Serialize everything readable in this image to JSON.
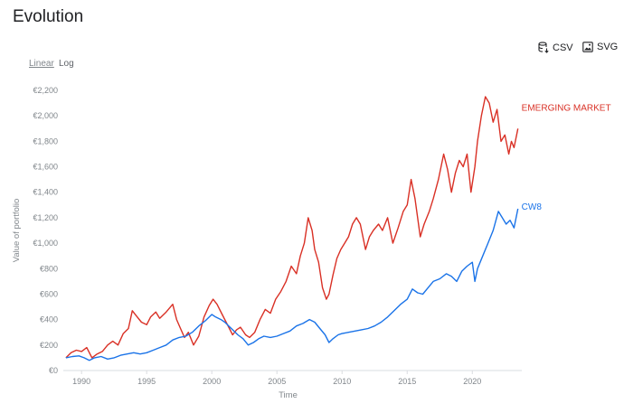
{
  "page": {
    "title": "Evolution"
  },
  "toolbar": {
    "csv_label": "CSV",
    "svg_label": "SVG",
    "linear_label": "Linear",
    "log_label": "Log",
    "active_scale": "Linear"
  },
  "chart_data": {
    "type": "line",
    "title": "",
    "xlabel": "Time",
    "ylabel": "Value of portfolio",
    "xlim": [
      1988.6,
      2023.8
    ],
    "ylim": [
      0,
      2200
    ],
    "x_ticks": [
      1990,
      1995,
      2000,
      2005,
      2010,
      2015,
      2020
    ],
    "x_tick_labels": [
      "1990",
      "1995",
      "2000",
      "2005",
      "2010",
      "2015",
      "2020"
    ],
    "y_ticks": [
      0,
      200,
      400,
      600,
      800,
      1000,
      1200,
      1400,
      1600,
      1800,
      2000,
      2200
    ],
    "y_tick_labels": [
      "€0",
      "€200",
      "€400",
      "€600",
      "€800",
      "€1,000",
      "€1,200",
      "€1,400",
      "€1,600",
      "€1,800",
      "€2,000",
      "€2,200"
    ],
    "grid": false,
    "legend": "inline labels at series ends",
    "series": [
      {
        "name": "EMERGING MARKET",
        "color": "#d93025",
        "x": [
          1988.8,
          1989.2,
          1989.6,
          1990.0,
          1990.4,
          1990.8,
          1991.2,
          1991.6,
          1992.0,
          1992.4,
          1992.8,
          1993.2,
          1993.6,
          1993.9,
          1994.2,
          1994.6,
          1995.0,
          1995.3,
          1995.7,
          1996.0,
          1996.5,
          1997.0,
          1997.3,
          1997.6,
          1997.9,
          1998.2,
          1998.6,
          1999.0,
          1999.4,
          1999.8,
          2000.1,
          2000.4,
          2000.8,
          2001.2,
          2001.6,
          2001.9,
          2002.2,
          2002.6,
          2002.9,
          2003.3,
          2003.7,
          2004.1,
          2004.5,
          2004.9,
          2005.3,
          2005.7,
          2006.1,
          2006.5,
          2006.8,
          2007.1,
          2007.4,
          2007.7,
          2007.9,
          2008.2,
          2008.5,
          2008.8,
          2009.0,
          2009.3,
          2009.6,
          2009.9,
          2010.2,
          2010.5,
          2010.8,
          2011.1,
          2011.4,
          2011.8,
          2012.1,
          2012.4,
          2012.8,
          2013.1,
          2013.5,
          2013.9,
          2014.3,
          2014.7,
          2015.0,
          2015.3,
          2015.6,
          2016.0,
          2016.3,
          2016.7,
          2017.0,
          2017.4,
          2017.8,
          2018.1,
          2018.4,
          2018.7,
          2019.0,
          2019.3,
          2019.6,
          2019.9,
          2020.2,
          2020.4,
          2020.7,
          2021.0,
          2021.3,
          2021.6,
          2021.9,
          2022.2,
          2022.5,
          2022.8,
          2023.0,
          2023.2,
          2023.5
        ],
        "values": [
          100,
          140,
          160,
          150,
          180,
          100,
          130,
          150,
          200,
          230,
          200,
          290,
          330,
          470,
          430,
          380,
          360,
          420,
          460,
          410,
          460,
          520,
          400,
          330,
          260,
          300,
          200,
          270,
          420,
          510,
          560,
          520,
          440,
          360,
          280,
          320,
          340,
          280,
          260,
          300,
          400,
          480,
          450,
          560,
          620,
          700,
          820,
          760,
          900,
          1000,
          1200,
          1100,
          950,
          850,
          650,
          560,
          600,
          750,
          880,
          950,
          1000,
          1050,
          1150,
          1200,
          1150,
          950,
          1050,
          1100,
          1150,
          1100,
          1200,
          1000,
          1120,
          1250,
          1300,
          1500,
          1350,
          1050,
          1150,
          1250,
          1350,
          1500,
          1700,
          1580,
          1400,
          1550,
          1650,
          1600,
          1700,
          1400,
          1600,
          1800,
          2000,
          2150,
          2100,
          1950,
          2050,
          1800,
          1850,
          1700,
          1800,
          1750,
          1900
        ]
      },
      {
        "name": "CW8",
        "color": "#1a73e8",
        "x": [
          1988.8,
          1989.3,
          1989.8,
          1990.2,
          1990.6,
          1991.0,
          1991.5,
          1992.0,
          1992.5,
          1993.0,
          1993.5,
          1994.0,
          1994.5,
          1995.0,
          1995.5,
          1996.0,
          1996.5,
          1997.0,
          1997.5,
          1998.0,
          1998.5,
          1999.0,
          1999.5,
          2000.0,
          2000.3,
          2000.7,
          2001.0,
          2001.5,
          2002.0,
          2002.4,
          2002.8,
          2003.2,
          2003.6,
          2004.0,
          2004.5,
          2005.0,
          2005.5,
          2006.0,
          2006.5,
          2007.0,
          2007.5,
          2007.9,
          2008.3,
          2008.7,
          2009.0,
          2009.3,
          2009.7,
          2010.0,
          2010.5,
          2011.0,
          2011.5,
          2012.0,
          2012.5,
          2013.0,
          2013.5,
          2014.0,
          2014.5,
          2015.0,
          2015.4,
          2015.8,
          2016.2,
          2016.6,
          2017.0,
          2017.5,
          2018.0,
          2018.4,
          2018.8,
          2019.2,
          2019.6,
          2020.0,
          2020.2,
          2020.4,
          2020.8,
          2021.2,
          2021.6,
          2022.0,
          2022.3,
          2022.6,
          2022.9,
          2023.2,
          2023.5
        ],
        "values": [
          100,
          110,
          115,
          100,
          80,
          100,
          110,
          90,
          100,
          120,
          130,
          140,
          130,
          140,
          160,
          180,
          200,
          240,
          260,
          270,
          300,
          350,
          390,
          440,
          420,
          400,
          380,
          330,
          280,
          250,
          200,
          220,
          250,
          270,
          260,
          270,
          290,
          310,
          350,
          370,
          400,
          380,
          330,
          280,
          220,
          250,
          280,
          290,
          300,
          310,
          320,
          330,
          350,
          380,
          420,
          470,
          520,
          560,
          640,
          610,
          600,
          650,
          700,
          720,
          760,
          740,
          700,
          780,
          820,
          850,
          700,
          800,
          900,
          1000,
          1100,
          1250,
          1200,
          1150,
          1180,
          1120,
          1270
        ]
      }
    ]
  }
}
